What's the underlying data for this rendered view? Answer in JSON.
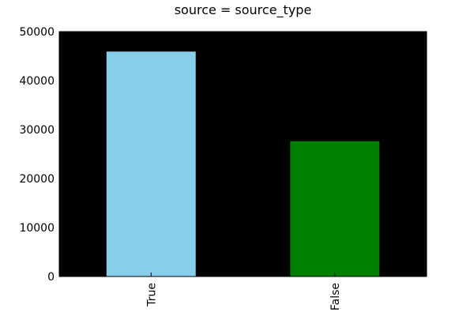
{
  "chart_data": {
    "type": "bar",
    "title": "source = source_type",
    "xlabel": "",
    "ylabel": "",
    "categories": [
      "True",
      "False"
    ],
    "values": [
      46000,
      27700
    ],
    "ylim": [
      0,
      50000
    ],
    "yticks": [
      0,
      10000,
      20000,
      30000,
      40000,
      50000
    ],
    "ytick_labels": [
      "0",
      "10000",
      "20000",
      "30000",
      "40000",
      "50000"
    ],
    "bar_colors": [
      "#87ceeb",
      "#008000"
    ],
    "plot_background": "#000000",
    "grid": false,
    "legend": "none"
  }
}
